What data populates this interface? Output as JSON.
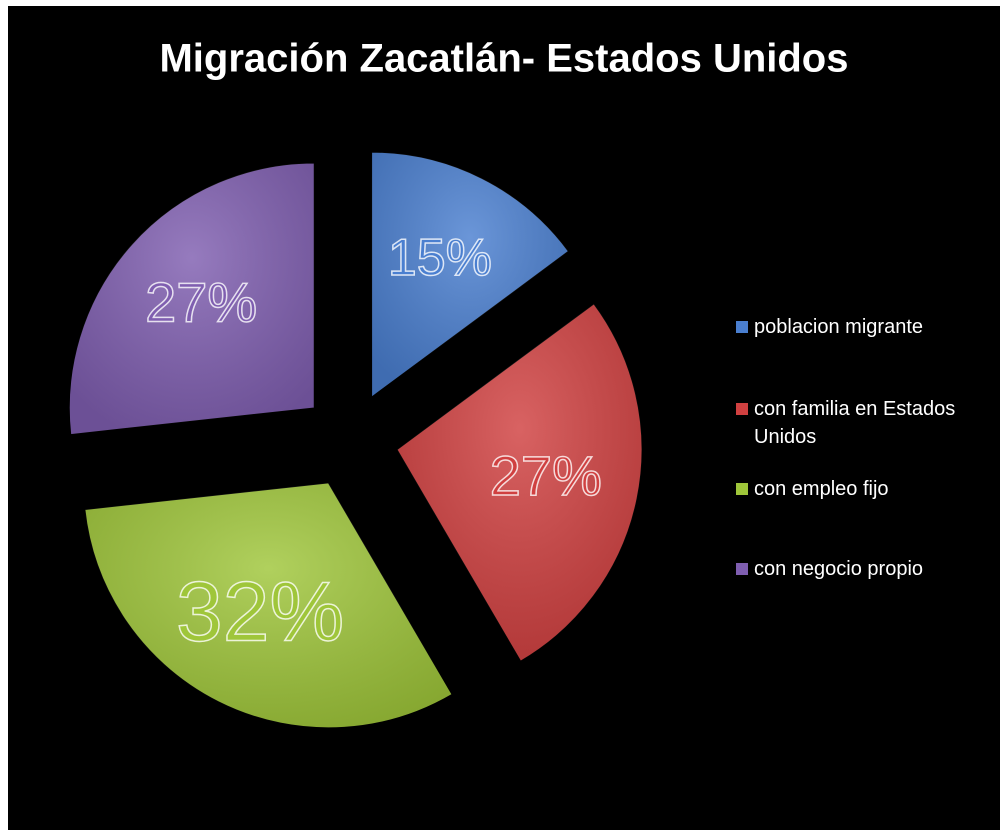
{
  "chart_data": {
    "type": "pie",
    "title": "Migración Zacatlán- Estados Unidos",
    "categories": [
      "poblacion migrante",
      "con familia en Estados Unidos",
      "con empleo fijo",
      "con negocio propio"
    ],
    "values": [
      15,
      27,
      32,
      27
    ],
    "value_labels": [
      "15%",
      "27%",
      "32%",
      "27%"
    ],
    "colors": [
      "#4a7fd0",
      "#d04040",
      "#9fc63a",
      "#7f5eb0"
    ],
    "legend": "right"
  }
}
